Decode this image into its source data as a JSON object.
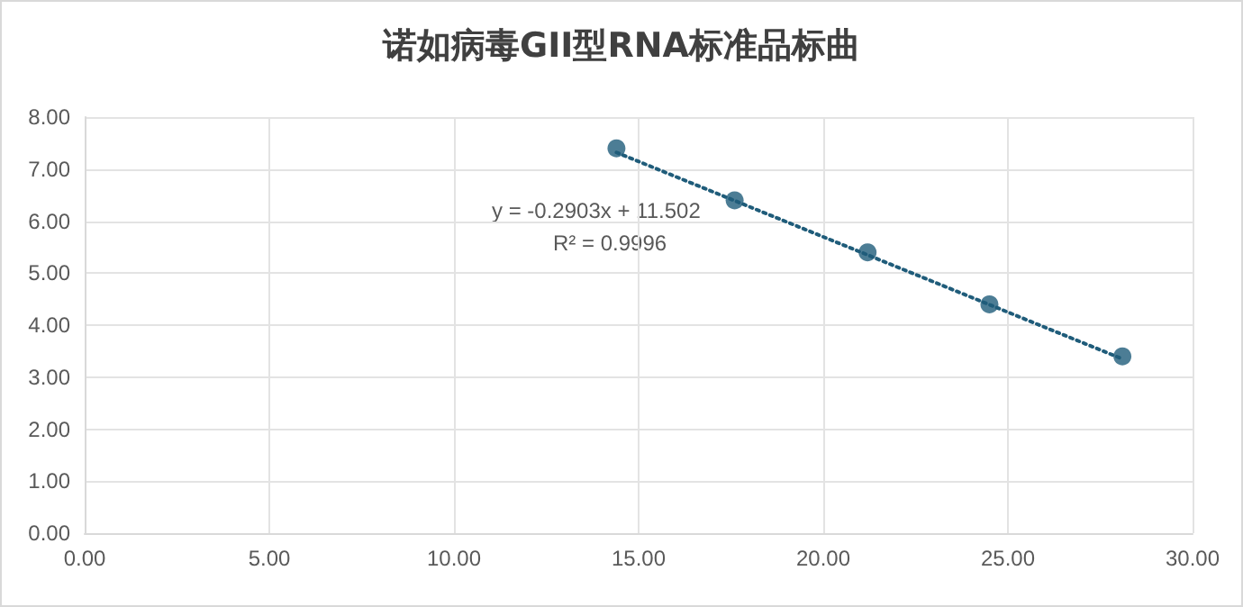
{
  "chart_data": {
    "type": "scatter",
    "title": "诺如病毒GII型RNA标准品标曲",
    "x": [
      14.4,
      17.6,
      21.2,
      24.5,
      28.1
    ],
    "series": [
      {
        "color": "#1f5c7a",
        "values": [
          7.4,
          6.4,
          5.4,
          4.4,
          3.4
        ],
        "marker": "circle"
      },
      {
        "type": "line",
        "color": "#1f5c7a",
        "x": [
          14.4,
          28.1
        ],
        "values": [
          7.32,
          3.35
        ],
        "line_style": "dotted",
        "marker": "none"
      }
    ],
    "xlim": [
      0,
      30
    ],
    "xticks": [
      {
        "value": 0,
        "label": "0.00"
      },
      {
        "value": 5,
        "label": "5.00"
      },
      {
        "value": 10,
        "label": "10.00"
      },
      {
        "value": 15,
        "label": "15.00"
      },
      {
        "value": 20,
        "label": "20.00"
      },
      {
        "value": 25,
        "label": "25.00"
      },
      {
        "value": 30,
        "label": "30.00"
      }
    ],
    "ylim": [
      0,
      8
    ],
    "yticks": [
      {
        "value": 0,
        "label": "0.00"
      },
      {
        "value": 1,
        "label": "1.00"
      },
      {
        "value": 2,
        "label": "2.00"
      },
      {
        "value": 3,
        "label": "3.00"
      },
      {
        "value": 4,
        "label": "4.00"
      },
      {
        "value": 5,
        "label": "5.00"
      },
      {
        "value": 6,
        "label": "6.00"
      },
      {
        "value": 7,
        "label": "7.00"
      },
      {
        "value": 8,
        "label": "8.00"
      }
    ],
    "annotations": [
      "y = -0.2903x + 11.502",
      "R² = 0.9996"
    ],
    "grid": true
  }
}
